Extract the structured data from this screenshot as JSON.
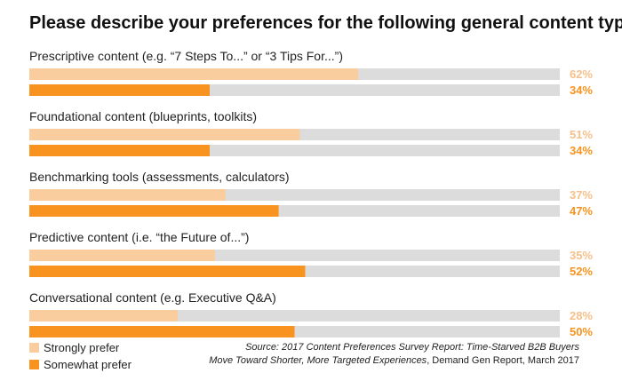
{
  "chart_data": {
    "type": "bar",
    "orientation": "horizontal",
    "title": "Please describe your preferences for the following general content types:",
    "categories": [
      "Prescriptive content (e.g. “7 Steps To...” or “3 Tips For...”)",
      "Foundational content (blueprints, toolkits)",
      "Benchmarking tools (assessments, calculators)",
      "Predictive content (i.e. “the Future of...”)",
      "Conversational content (e.g. Executive Q&A)"
    ],
    "series": [
      {
        "name": "Strongly prefer",
        "values": [
          62,
          51,
          37,
          35,
          28
        ],
        "labels": [
          "62%",
          "51%",
          "37%",
          "35%",
          "28%"
        ],
        "color": "#f9cd9e",
        "label_color": "#f6c08a"
      },
      {
        "name": "Somewhat prefer",
        "values": [
          34,
          34,
          47,
          52,
          50
        ],
        "labels": [
          "34%",
          "34%",
          "47%",
          "52%",
          "50%"
        ],
        "color": "#f7931e",
        "label_color": "#f7931e"
      }
    ],
    "xlim": [
      0,
      100
    ],
    "track_color": "#dcdcdc",
    "legend": "bottom-left"
  },
  "source": {
    "line1": "Source: 2017 Content Preferences Survey Report: Time-Starved B2B Buyers",
    "line2_italic": "Move Toward Shorter, More Targeted Experiences",
    "line2_rest": ", Demand Gen Report, March 2017"
  }
}
